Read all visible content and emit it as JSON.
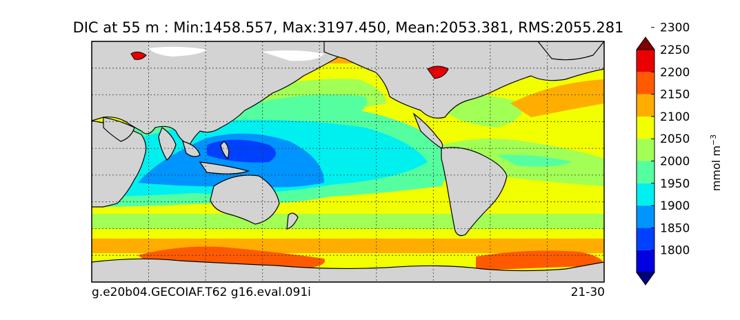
{
  "title": "DIC at 55 m : Min:1458.557, Max:3197.450, Mean:2053.381, RMS:2055.281",
  "caption_left": "g.e20b04.GECOIAF.T62 g16.eval.091i",
  "caption_right": "21-30",
  "colorbar": {
    "label": "mmol m",
    "label_exponent": "−3",
    "ticks": [
      "1800",
      "1850",
      "1900",
      "1950",
      "2000",
      "2050",
      "2100",
      "2150",
      "2200",
      "2250",
      "2300"
    ],
    "colors": [
      "#00007f",
      "#0000e0",
      "#0040ff",
      "#0094ff",
      "#00f0f0",
      "#55ff9f",
      "#a2ff55",
      "#f2ff00",
      "#ffad00",
      "#ff5a00",
      "#ea0000",
      "#7f0000"
    ]
  },
  "map": {
    "land_color": "#d3d3d3",
    "grid": true
  }
}
